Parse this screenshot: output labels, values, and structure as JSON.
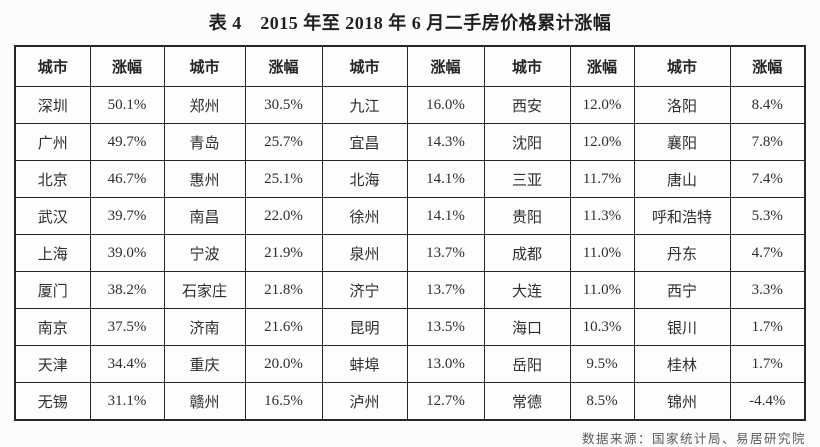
{
  "title": "表 4　2015 年至 2018 年 6 月二手房价格累计涨幅",
  "table": {
    "col_headers": [
      "城市",
      "涨幅",
      "城市",
      "涨幅",
      "城市",
      "涨幅",
      "城市",
      "涨幅",
      "城市",
      "涨幅"
    ],
    "rows": [
      [
        "深圳",
        "50.1%",
        "郑州",
        "30.5%",
        "九江",
        "16.0%",
        "西安",
        "12.0%",
        "洛阳",
        "8.4%"
      ],
      [
        "广州",
        "49.7%",
        "青岛",
        "25.7%",
        "宜昌",
        "14.3%",
        "沈阳",
        "12.0%",
        "襄阳",
        "7.8%"
      ],
      [
        "北京",
        "46.7%",
        "惠州",
        "25.1%",
        "北海",
        "14.1%",
        "三亚",
        "11.7%",
        "唐山",
        "7.4%"
      ],
      [
        "武汉",
        "39.7%",
        "南昌",
        "22.0%",
        "徐州",
        "14.1%",
        "贵阳",
        "11.3%",
        "呼和浩特",
        "5.3%"
      ],
      [
        "上海",
        "39.0%",
        "宁波",
        "21.9%",
        "泉州",
        "13.7%",
        "成都",
        "11.0%",
        "丹东",
        "4.7%"
      ],
      [
        "厦门",
        "38.2%",
        "石家庄",
        "21.8%",
        "济宁",
        "13.7%",
        "大连",
        "11.0%",
        "西宁",
        "3.3%"
      ],
      [
        "南京",
        "37.5%",
        "济南",
        "21.6%",
        "昆明",
        "13.5%",
        "海口",
        "10.3%",
        "银川",
        "1.7%"
      ],
      [
        "天津",
        "34.4%",
        "重庆",
        "20.0%",
        "蚌埠",
        "13.0%",
        "岳阳",
        "9.5%",
        "桂林",
        "1.7%"
      ],
      [
        "无锡",
        "31.1%",
        "赣州",
        "16.5%",
        "泸州",
        "12.7%",
        "常德",
        "8.5%",
        "锦州",
        "-4.4%"
      ]
    ]
  },
  "footer": "数据来源：国家统计局、易居研究院"
}
